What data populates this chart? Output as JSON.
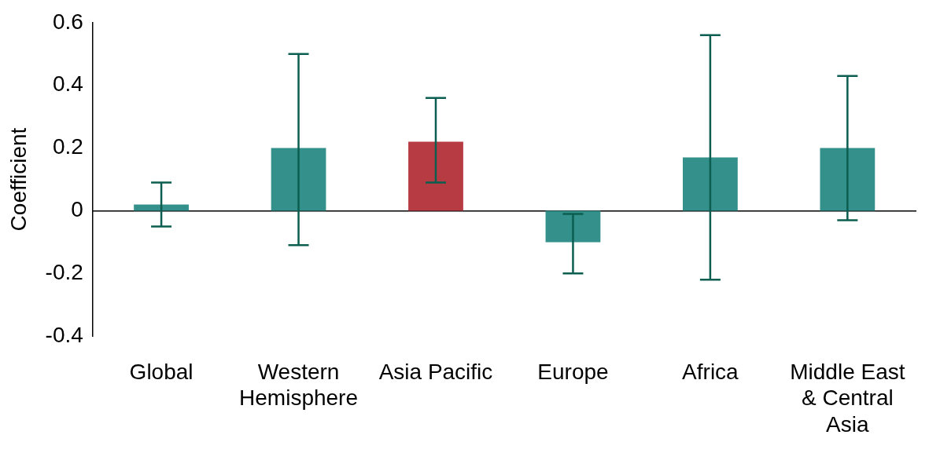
{
  "chart_data": {
    "type": "bar",
    "ylabel": "Coefficient",
    "categories": [
      "Global",
      "Western Hemisphere",
      "Asia Pacific",
      "Europe",
      "Africa",
      "Middle East & Central Asia"
    ],
    "values": [
      0.02,
      0.2,
      0.22,
      -0.1,
      0.17,
      0.2
    ],
    "colors": [
      "#34908a",
      "#34908a",
      "#b73b42",
      "#34908a",
      "#34908a",
      "#34908a"
    ],
    "errors": [
      [
        -0.05,
        0.09
      ],
      [
        -0.11,
        0.5
      ],
      [
        0.09,
        0.36
      ],
      [
        -0.2,
        -0.01
      ],
      [
        -0.22,
        0.56
      ],
      [
        -0.03,
        0.43
      ]
    ],
    "ylim": [
      -0.4,
      0.6
    ],
    "yticks": [
      -0.4,
      -0.2,
      0,
      0.2,
      0.4,
      0.6
    ],
    "grid": false,
    "legend": false
  }
}
